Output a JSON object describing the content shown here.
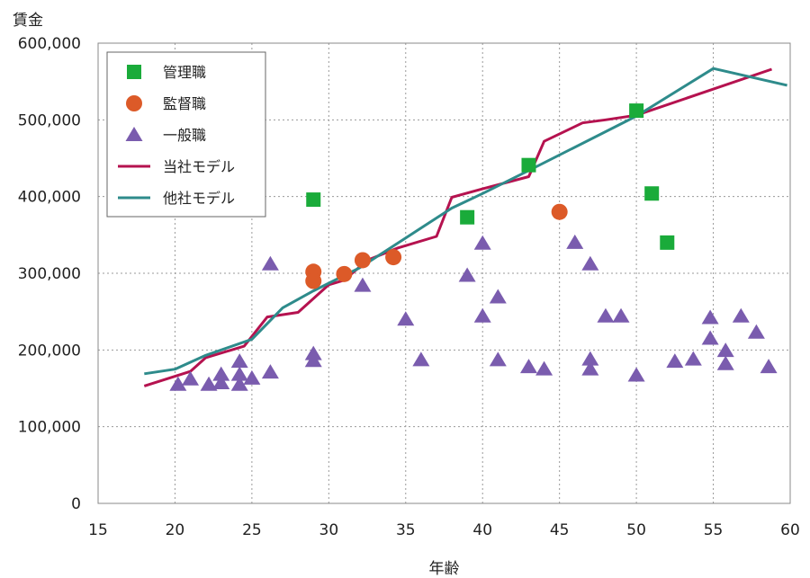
{
  "chart_data": {
    "type": "scatter",
    "xlabel": "年齢",
    "ylabel": "賃金",
    "xlim": [
      15,
      60
    ],
    "ylim": [
      0,
      600000
    ],
    "x_ticks": [
      {
        "value": 15,
        "label": "15"
      },
      {
        "value": 20,
        "label": "20"
      },
      {
        "value": 25,
        "label": "25"
      },
      {
        "value": 30,
        "label": "30"
      },
      {
        "value": 35,
        "label": "35"
      },
      {
        "value": 40,
        "label": "40"
      },
      {
        "value": 45,
        "label": "45"
      },
      {
        "value": 50,
        "label": "50"
      },
      {
        "value": 55,
        "label": "55"
      },
      {
        "value": 60,
        "label": "60"
      }
    ],
    "y_ticks": [
      {
        "value": 0,
        "label": "0"
      },
      {
        "value": 100000,
        "label": "100,000"
      },
      {
        "value": 200000,
        "label": "200,000"
      },
      {
        "value": 300000,
        "label": "300,000"
      },
      {
        "value": 400000,
        "label": "400,000"
      },
      {
        "value": 500000,
        "label": "500,000"
      },
      {
        "value": 600000,
        "label": "600,000"
      }
    ],
    "grid": true,
    "legend_position": "top-left",
    "series": [
      {
        "name": "管理職",
        "kind": "points",
        "marker": "square",
        "color": "#1aab3a",
        "points": [
          [
            29,
            396000
          ],
          [
            39,
            373000
          ],
          [
            43,
            441000
          ],
          [
            50,
            512000
          ],
          [
            51,
            404000
          ],
          [
            52,
            340000
          ]
        ]
      },
      {
        "name": "監督職",
        "kind": "points",
        "marker": "circle",
        "color": "#dc5a28",
        "points": [
          [
            29,
            302000
          ],
          [
            29,
            290000
          ],
          [
            31,
            299000
          ],
          [
            32.2,
            317000
          ],
          [
            34.2,
            321000
          ],
          [
            45,
            380000
          ]
        ]
      },
      {
        "name": "一般職",
        "kind": "points",
        "marker": "triangle",
        "color": "#7a5cae",
        "points": [
          [
            20.2,
            155000
          ],
          [
            21,
            162000
          ],
          [
            22.2,
            155000
          ],
          [
            23,
            157000
          ],
          [
            23,
            168000
          ],
          [
            24.2,
            185000
          ],
          [
            24.2,
            168000
          ],
          [
            24.2,
            155000
          ],
          [
            25,
            163000
          ],
          [
            26.2,
            171000
          ],
          [
            26.2,
            312000
          ],
          [
            29,
            195000
          ],
          [
            29,
            186000
          ],
          [
            32.2,
            284000
          ],
          [
            35,
            240000
          ],
          [
            36,
            187000
          ],
          [
            39,
            297000
          ],
          [
            40,
            339000
          ],
          [
            40,
            244000
          ],
          [
            41,
            269000
          ],
          [
            41,
            187000
          ],
          [
            43,
            178000
          ],
          [
            44,
            175000
          ],
          [
            46,
            340000
          ],
          [
            47,
            312000
          ],
          [
            47,
            188000
          ],
          [
            47,
            175000
          ],
          [
            48,
            244000
          ],
          [
            49,
            244000
          ],
          [
            50,
            167000
          ],
          [
            52.5,
            185000
          ],
          [
            53.7,
            188000
          ],
          [
            54.8,
            242000
          ],
          [
            54.8,
            215000
          ],
          [
            55.8,
            199000
          ],
          [
            55.8,
            182000
          ],
          [
            56.8,
            244000
          ],
          [
            57.8,
            223000
          ],
          [
            58.6,
            178000
          ]
        ]
      },
      {
        "name": "当社モデル",
        "kind": "line",
        "color": "#b5124f",
        "points": [
          [
            18,
            153000
          ],
          [
            21,
            172000
          ],
          [
            22,
            190000
          ],
          [
            24.5,
            205000
          ],
          [
            26,
            243000
          ],
          [
            28,
            249000
          ],
          [
            30,
            285000
          ],
          [
            31,
            291000
          ],
          [
            32.5,
            317000
          ],
          [
            34.5,
            333000
          ],
          [
            37,
            348000
          ],
          [
            38,
            399000
          ],
          [
            40,
            410000
          ],
          [
            43,
            426000
          ],
          [
            44,
            472000
          ],
          [
            46.5,
            496000
          ],
          [
            48,
            500000
          ],
          [
            50,
            506000
          ],
          [
            58.8,
            566000
          ]
        ]
      },
      {
        "name": "他社モデル",
        "kind": "line",
        "color": "#2e8b8b",
        "points": [
          [
            18,
            169000
          ],
          [
            20,
            175000
          ],
          [
            22,
            193000
          ],
          [
            25,
            214000
          ],
          [
            27,
            255000
          ],
          [
            29,
            277000
          ],
          [
            32,
            307000
          ],
          [
            35,
            346000
          ],
          [
            38,
            385000
          ],
          [
            40,
            404000
          ],
          [
            43,
            434000
          ],
          [
            50,
            505000
          ],
          [
            55,
            567000
          ],
          [
            59.8,
            545000
          ]
        ]
      }
    ]
  }
}
